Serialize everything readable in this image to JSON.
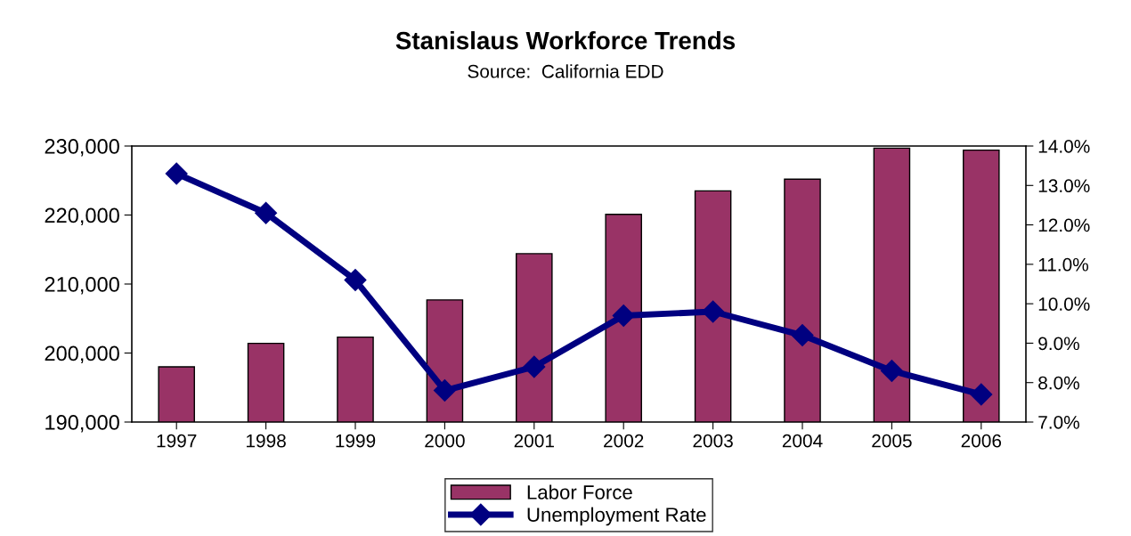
{
  "chart_data": {
    "type": "bar",
    "title": "Stanislaus Workforce Trends",
    "subtitle": "Source:  California EDD",
    "categories": [
      "1997",
      "1998",
      "1999",
      "2000",
      "2001",
      "2002",
      "2003",
      "2004",
      "2005",
      "2006"
    ],
    "series": [
      {
        "name": "Labor Force",
        "color": "#993366",
        "values": [
          198000,
          201400,
          202300,
          207700,
          214400,
          220100,
          223500,
          225200,
          229700,
          229400
        ]
      },
      {
        "name": "Unemployment Rate",
        "type": "line",
        "axis": "y2",
        "color": "#000080",
        "marker": "diamond",
        "values": [
          13.3,
          12.3,
          10.6,
          7.8,
          8.4,
          9.7,
          9.8,
          9.2,
          8.3,
          7.7
        ]
      }
    ],
    "ylim": [
      190000,
      230000
    ],
    "yticks": [
      {
        "value": 190000,
        "label": "190,000"
      },
      {
        "value": 200000,
        "label": "200,000"
      },
      {
        "value": 210000,
        "label": "210,000"
      },
      {
        "value": 220000,
        "label": "220,000"
      },
      {
        "value": 230000,
        "label": "230,000"
      }
    ],
    "y2lim": [
      7,
      14
    ],
    "y2ticks": [
      {
        "value": 7,
        "label": "7.0%"
      },
      {
        "value": 8,
        "label": "8.0%"
      },
      {
        "value": 9,
        "label": "9.0%"
      },
      {
        "value": 10,
        "label": "10.0%"
      },
      {
        "value": 11,
        "label": "11.0%"
      },
      {
        "value": 12,
        "label": "12.0%"
      },
      {
        "value": 13,
        "label": "13.0%"
      },
      {
        "value": 14,
        "label": "14.0%"
      }
    ],
    "grid": false,
    "legend": "bottom"
  }
}
